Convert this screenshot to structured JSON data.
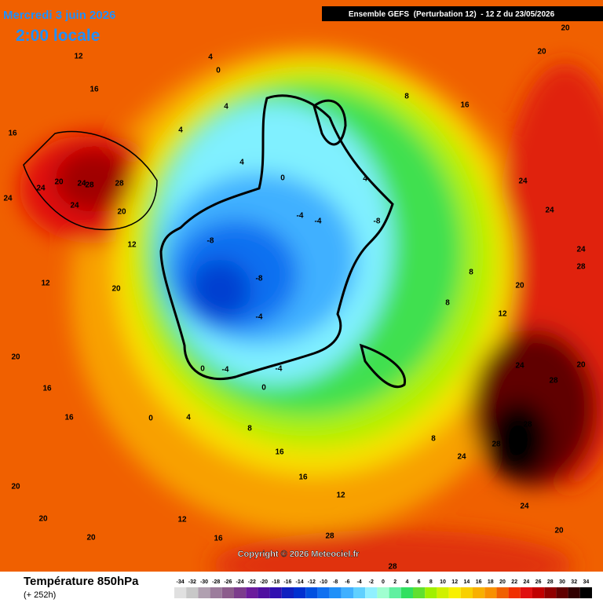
{
  "header": {
    "date": "Mercredi 3 juin 2026",
    "time": "2:00 locale",
    "run": "Ensemble GEFS  (Perturbation 12)  - 12 Z du 23/05/2026",
    "copyright": "Copyright © 2026 Meteociel.fr"
  },
  "footer": {
    "title": "Température 850hPa",
    "lead": "(+ 252h)"
  },
  "legend": {
    "ticks": [
      -34,
      -32,
      -30,
      -28,
      -26,
      -24,
      -22,
      -20,
      -18,
      -16,
      -14,
      -12,
      -10,
      -8,
      -6,
      -4,
      -2,
      0,
      2,
      4,
      6,
      8,
      10,
      12,
      14,
      16,
      18,
      20,
      22,
      24,
      26,
      28,
      30,
      32,
      34
    ],
    "colors": [
      "#e0e0e0",
      "#c8c8c8",
      "#b0a0b0",
      "#9c7c9c",
      "#8c5c8c",
      "#7c3c8c",
      "#6c1c9c",
      "#5010a0",
      "#3010b0",
      "#1020c0",
      "#0030d0",
      "#0050e0",
      "#1070f0",
      "#2090f8",
      "#40b0ff",
      "#60d0ff",
      "#90f0ff",
      "#a0ffd0",
      "#60f0a0",
      "#30e060",
      "#60e030",
      "#a0f000",
      "#d0f000",
      "#f8f000",
      "#f8d000",
      "#f8b000",
      "#f89000",
      "#f06000",
      "#f03000",
      "#e01010",
      "#c00000",
      "#900000",
      "#600000",
      "#300000",
      "#000000"
    ]
  },
  "map": {
    "labels": [
      12,
      16,
      16,
      20,
      24,
      28,
      28,
      24,
      24,
      20,
      24,
      12,
      12,
      20,
      20,
      16,
      16,
      4,
      4,
      0,
      4,
      4,
      0,
      -8,
      -8,
      -4,
      -4,
      -8,
      4,
      8,
      16,
      20,
      20,
      24,
      24,
      24,
      28,
      28,
      28,
      28,
      24,
      20,
      28,
      28,
      12,
      16,
      20,
      20,
      20,
      16,
      16,
      12,
      8,
      4,
      0,
      -4,
      -4,
      -4,
      0,
      0,
      8,
      8,
      8,
      20,
      12,
      24,
      24,
      20
    ]
  }
}
